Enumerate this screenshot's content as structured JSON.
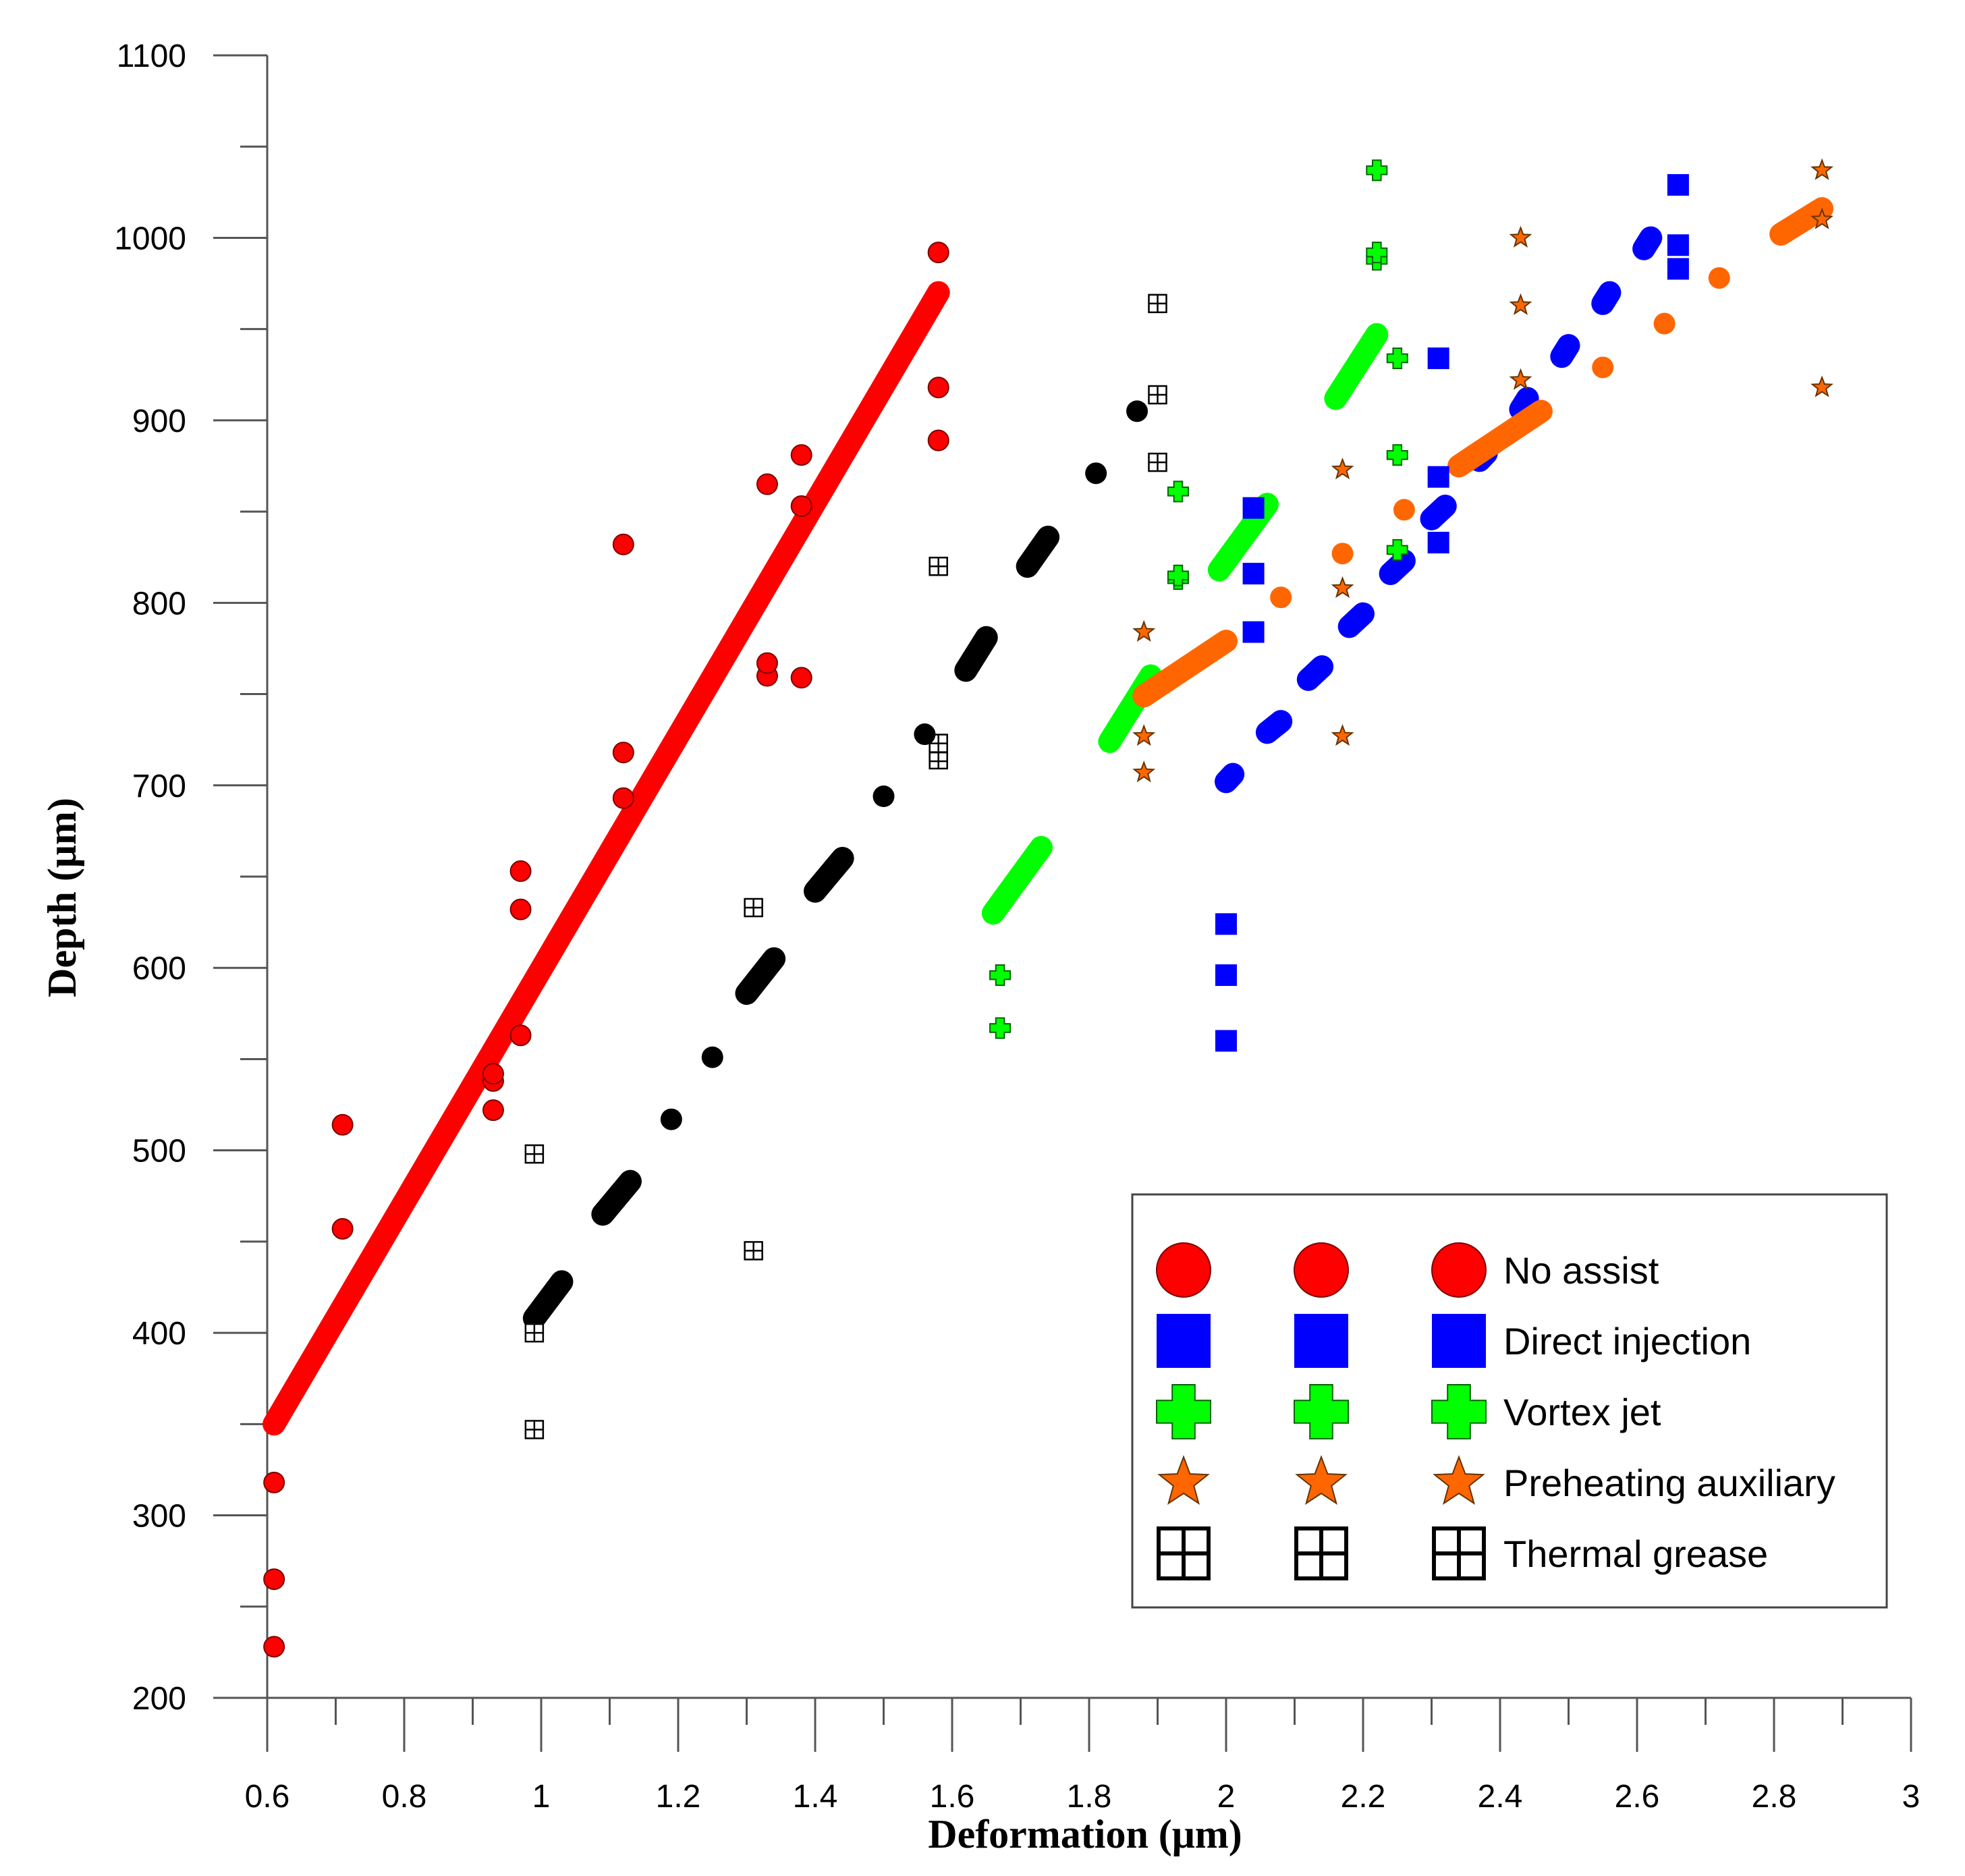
{
  "chart_data": {
    "type": "scatter",
    "title": "",
    "xlabel": "Deformation  (μm)",
    "ylabel": "Depth (μm)",
    "xlim": [
      0.6,
      3.0
    ],
    "ylim": [
      200,
      1100
    ],
    "xticks": [
      0.6,
      0.8,
      1.0,
      1.2,
      1.4,
      1.6,
      1.8,
      2.0,
      2.2,
      2.4,
      2.6,
      2.8,
      3.0
    ],
    "xtick_labels": [
      "0.6",
      "0.8",
      "1",
      "1.2",
      "1.4",
      "1.6",
      "1.8",
      "2",
      "2.2",
      "2.4",
      "2.6",
      "2.8",
      "3"
    ],
    "yticks": [
      200,
      300,
      400,
      500,
      600,
      700,
      800,
      900,
      1000,
      1100
    ],
    "ytick_labels": [
      "200",
      "300",
      "400",
      "500",
      "600",
      "700",
      "800",
      "900",
      "1000",
      "1100"
    ],
    "legend_position": "bottom-right",
    "series": [
      {
        "name": "No assist",
        "marker": "circle",
        "color": "#ff0000",
        "points": [
          [
            0.61,
            228
          ],
          [
            0.61,
            265
          ],
          [
            0.61,
            318
          ],
          [
            0.71,
            457
          ],
          [
            0.71,
            514
          ],
          [
            0.93,
            522
          ],
          [
            0.93,
            538
          ],
          [
            0.93,
            542
          ],
          [
            0.97,
            563
          ],
          [
            0.97,
            632
          ],
          [
            0.97,
            653
          ],
          [
            1.12,
            693
          ],
          [
            1.12,
            718
          ],
          [
            1.12,
            832
          ],
          [
            1.33,
            760
          ],
          [
            1.33,
            767
          ],
          [
            1.33,
            865
          ],
          [
            1.38,
            759
          ],
          [
            1.38,
            853
          ],
          [
            1.38,
            881
          ],
          [
            1.58,
            889
          ],
          [
            1.58,
            918
          ],
          [
            1.58,
            992
          ]
        ],
        "fit_segments": [
          [
            [
              0.61,
              350
            ],
            [
              1.58,
              970
            ]
          ]
        ]
      },
      {
        "name": "Direct injection",
        "marker": "square",
        "color": "#0000ff",
        "points": [
          [
            2.0,
            560
          ],
          [
            2.0,
            596
          ],
          [
            2.0,
            624
          ],
          [
            2.04,
            784
          ],
          [
            2.04,
            816
          ],
          [
            2.04,
            852
          ],
          [
            2.31,
            833
          ],
          [
            2.31,
            869
          ],
          [
            2.31,
            934
          ],
          [
            2.66,
            983
          ],
          [
            2.66,
            996
          ],
          [
            2.66,
            1029
          ]
        ],
        "fit_segments": [
          [
            [
              2.0,
              702
            ],
            [
              2.01,
              706
            ]
          ],
          [
            [
              2.06,
              729
            ],
            [
              2.08,
              735
            ]
          ],
          [
            [
              2.12,
              758
            ],
            [
              2.14,
              765
            ]
          ],
          [
            [
              2.18,
              787
            ],
            [
              2.2,
              794
            ]
          ],
          [
            [
              2.24,
              816
            ],
            [
              2.26,
              823
            ]
          ],
          [
            [
              2.3,
              846
            ],
            [
              2.32,
              853
            ]
          ],
          [
            [
              2.37,
              878
            ],
            [
              2.38,
              882
            ]
          ],
          [
            [
              2.43,
              906
            ],
            [
              2.44,
              912
            ]
          ],
          [
            [
              2.49,
              935
            ],
            [
              2.5,
              941
            ]
          ],
          [
            [
              2.55,
              964
            ],
            [
              2.56,
              970
            ]
          ],
          [
            [
              2.61,
              994
            ],
            [
              2.62,
              1000
            ]
          ]
        ]
      },
      {
        "name": "Vortex jet",
        "marker": "plus",
        "color": "#00ff00",
        "points": [
          [
            1.67,
            567
          ],
          [
            1.67,
            596
          ],
          [
            1.93,
            813
          ],
          [
            1.93,
            815
          ],
          [
            1.93,
            861
          ],
          [
            2.22,
            988
          ],
          [
            2.22,
            992
          ],
          [
            2.22,
            1037
          ],
          [
            2.25,
            829
          ],
          [
            2.25,
            881
          ],
          [
            2.25,
            934
          ]
        ],
        "fit_segments": [
          [
            [
              1.66,
              630
            ],
            [
              1.73,
              666
            ]
          ],
          [
            [
              1.83,
              724
            ],
            [
              1.89,
              760
            ]
          ],
          [
            [
              1.99,
              818
            ],
            [
              2.06,
              854
            ]
          ],
          [
            [
              2.16,
              912
            ],
            [
              2.22,
              947
            ]
          ]
        ]
      },
      {
        "name": "Preheating auxiliary",
        "marker": "star",
        "color": "#ff6600",
        "points": [
          [
            1.88,
            707
          ],
          [
            1.88,
            727
          ],
          [
            1.88,
            784
          ],
          [
            2.17,
            727
          ],
          [
            2.17,
            808
          ],
          [
            2.17,
            873
          ],
          [
            2.43,
            922
          ],
          [
            2.43,
            963
          ],
          [
            2.43,
            1000
          ],
          [
            2.87,
            918
          ],
          [
            2.87,
            1010
          ],
          [
            2.87,
            1037
          ]
        ],
        "extra_points": [
          [
            2.08,
            803
          ],
          [
            2.17,
            827
          ],
          [
            2.26,
            851
          ],
          [
            2.55,
            929
          ],
          [
            2.64,
            953
          ],
          [
            2.72,
            978
          ]
        ],
        "fit_segments": [
          [
            [
              1.88,
              749
            ],
            [
              2.0,
              779
            ]
          ],
          [
            [
              2.34,
              875
            ],
            [
              2.46,
              905
            ]
          ],
          [
            [
              2.81,
              1002
            ],
            [
              2.87,
              1016
            ]
          ]
        ]
      },
      {
        "name": "Thermal grease",
        "marker": "boxgrid",
        "color": "#000000",
        "points": [
          [
            0.99,
            347
          ],
          [
            0.99,
            400
          ],
          [
            0.99,
            498
          ],
          [
            1.31,
            445
          ],
          [
            1.31,
            633
          ],
          [
            1.58,
            714
          ],
          [
            1.58,
            718
          ],
          [
            1.58,
            723
          ],
          [
            1.58,
            820
          ],
          [
            1.9,
            877
          ],
          [
            1.9,
            914
          ],
          [
            1.9,
            964
          ]
        ],
        "extra_points": [
          [
            1.19,
            517
          ],
          [
            1.25,
            551
          ],
          [
            1.5,
            694
          ],
          [
            1.56,
            728
          ],
          [
            1.81,
            871
          ],
          [
            1.87,
            905
          ]
        ],
        "fit_segments": [
          [
            [
              0.99,
              408
            ],
            [
              1.03,
              428
            ]
          ],
          [
            [
              1.09,
              465
            ],
            [
              1.13,
              483
            ]
          ],
          [
            [
              1.3,
              586
            ],
            [
              1.34,
              605
            ]
          ],
          [
            [
              1.4,
              642
            ],
            [
              1.44,
              660
            ]
          ],
          [
            [
              1.62,
              763
            ],
            [
              1.65,
              781
            ]
          ],
          [
            [
              1.71,
              820
            ],
            [
              1.74,
              836
            ]
          ]
        ]
      }
    ],
    "legend_items": [
      "No assist",
      "Direct injection",
      "Vortex jet",
      "Preheating auxiliary",
      "Thermal grease"
    ]
  }
}
